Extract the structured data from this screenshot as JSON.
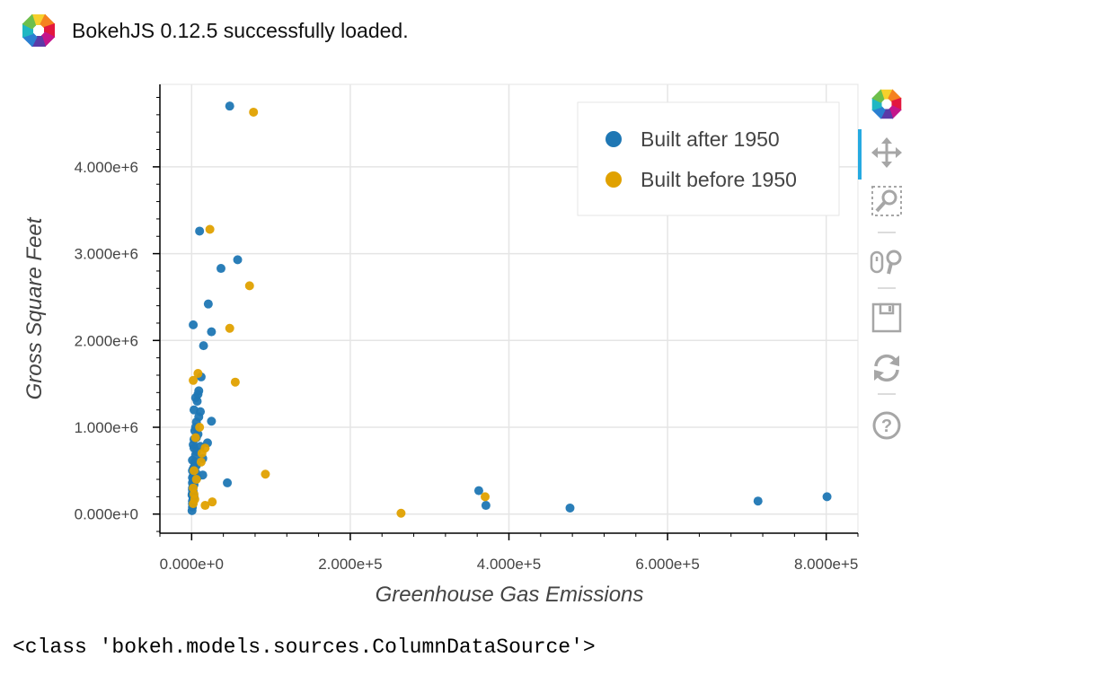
{
  "banner": {
    "text": "BokehJS 0.12.5 successfully loaded.",
    "logo_icon": "bokeh-logo-icon"
  },
  "output": {
    "repr": "<class 'bokeh.models.sources.ColumnDataSource'>"
  },
  "toolbar": {
    "logo_icon": "bokeh-logo-icon",
    "tools": [
      {
        "name": "pan-tool",
        "icon": "pan-icon",
        "active": true
      },
      {
        "name": "box-zoom-tool",
        "icon": "box-zoom-icon",
        "active": false
      },
      {
        "name": "wheel-zoom-tool",
        "icon": "wheel-zoom-icon",
        "active": false
      },
      {
        "name": "save-tool",
        "icon": "save-icon",
        "active": false
      },
      {
        "name": "reset-tool",
        "icon": "reset-icon",
        "active": false
      },
      {
        "name": "help-tool",
        "icon": "help-icon",
        "active": false
      }
    ]
  },
  "chart_data": {
    "type": "scatter",
    "title": "",
    "xlabel": "Greenhouse Gas Emissions",
    "ylabel": "Gross Square Feet",
    "xlim": [
      -40000,
      840000
    ],
    "ylim": [
      -220000,
      4950000
    ],
    "xticks": [
      0,
      200000,
      400000,
      600000,
      800000
    ],
    "xtick_labels": [
      "0.000e+0",
      "2.000e+5",
      "4.000e+5",
      "6.000e+5",
      "8.000e+5"
    ],
    "yticks": [
      0,
      1000000,
      2000000,
      3000000,
      4000000
    ],
    "ytick_labels": [
      "0.000e+0",
      "1.000e+6",
      "2.000e+6",
      "3.000e+6",
      "4.000e+6"
    ],
    "grid": true,
    "legend_position": "top-right",
    "series": [
      {
        "name": "Built after 1950",
        "color": "#1f77b4",
        "x": [
          48000,
          10000,
          37000,
          58000,
          21000,
          25000,
          2000,
          15000,
          12000,
          9000,
          8000,
          5000,
          7000,
          3000,
          11000,
          9000,
          6000,
          5000,
          25000,
          4000,
          8000,
          6000,
          3000,
          20000,
          11000,
          2000,
          3000,
          6000,
          5000,
          14000,
          1000,
          4000,
          6000,
          3000,
          2000,
          1000,
          5000,
          3000,
          2000,
          1000,
          4000,
          2000,
          1000,
          3000,
          2000,
          1000,
          1000,
          2000,
          1000,
          500,
          45000,
          14000,
          7000,
          3000,
          2000,
          1000,
          1000,
          1000,
          500,
          362000,
          371000,
          477000,
          714000,
          801000
        ],
        "y": [
          4700000,
          3260000,
          2830000,
          2930000,
          2420000,
          2100000,
          2180000,
          1940000,
          1580000,
          1420000,
          1380000,
          1340000,
          1300000,
          1200000,
          1180000,
          1120000,
          1060000,
          1000000,
          1070000,
          960000,
          920000,
          880000,
          860000,
          820000,
          780000,
          800000,
          760000,
          720000,
          680000,
          640000,
          620000,
          600000,
          560000,
          540000,
          520000,
          500000,
          480000,
          460000,
          440000,
          420000,
          400000,
          380000,
          360000,
          340000,
          320000,
          300000,
          280000,
          260000,
          240000,
          220000,
          360000,
          450000,
          420000,
          200000,
          180000,
          150000,
          120000,
          80000,
          40000,
          270000,
          100000,
          70000,
          150000,
          200000
        ]
      },
      {
        "name": "Built before 1950",
        "color": "#e0a100",
        "x": [
          78000,
          23000,
          73000,
          48000,
          55000,
          8000,
          2000,
          10000,
          17000,
          13000,
          6000,
          3000,
          4000,
          2000,
          93000,
          26000,
          17000,
          264000,
          370000,
          12000,
          5000,
          2000,
          3000
        ],
        "y": [
          4630000,
          3280000,
          2630000,
          2140000,
          1520000,
          1620000,
          1540000,
          1000000,
          760000,
          700000,
          400000,
          230000,
          170000,
          120000,
          460000,
          140000,
          100000,
          10000,
          200000,
          600000,
          880000,
          300000,
          500000
        ]
      }
    ]
  }
}
